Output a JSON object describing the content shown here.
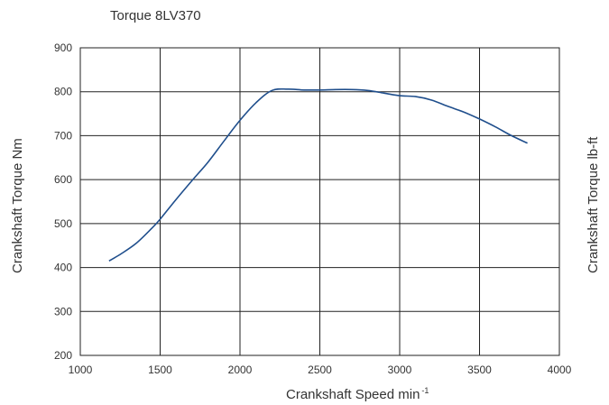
{
  "chart_data": {
    "type": "line",
    "title": "Torque 8LV370",
    "xlabel": "Crankshaft Speed min",
    "xlabel_superscript": "-1",
    "ylabel": "Crankshaft Torque Nm",
    "ylabel_right": "Crankshaft Torque lb-ft",
    "xlim": [
      1000,
      4000
    ],
    "ylim": [
      200,
      900
    ],
    "x_ticks": [
      1000,
      1500,
      2000,
      2500,
      3000,
      3500,
      4000
    ],
    "y_ticks": [
      200,
      300,
      400,
      500,
      600,
      700,
      800,
      900
    ],
    "grid": true,
    "legend": "none",
    "line_color": "#1f4e8c",
    "series": [
      {
        "x": [
          1180,
          1250,
          1350,
          1450,
          1500,
          1600,
          1700,
          1800,
          1900,
          2000,
          2100,
          2200,
          2300,
          2400,
          2500,
          2600,
          2700,
          2800,
          2900,
          3000,
          3100,
          3200,
          3300,
          3400,
          3500,
          3600,
          3700,
          3800
        ],
        "y": [
          415,
          430,
          455,
          490,
          510,
          555,
          598,
          640,
          688,
          735,
          775,
          803,
          806,
          804,
          804,
          805,
          805,
          803,
          797,
          791,
          789,
          781,
          767,
          754,
          738,
          720,
          700,
          683
        ]
      }
    ]
  }
}
